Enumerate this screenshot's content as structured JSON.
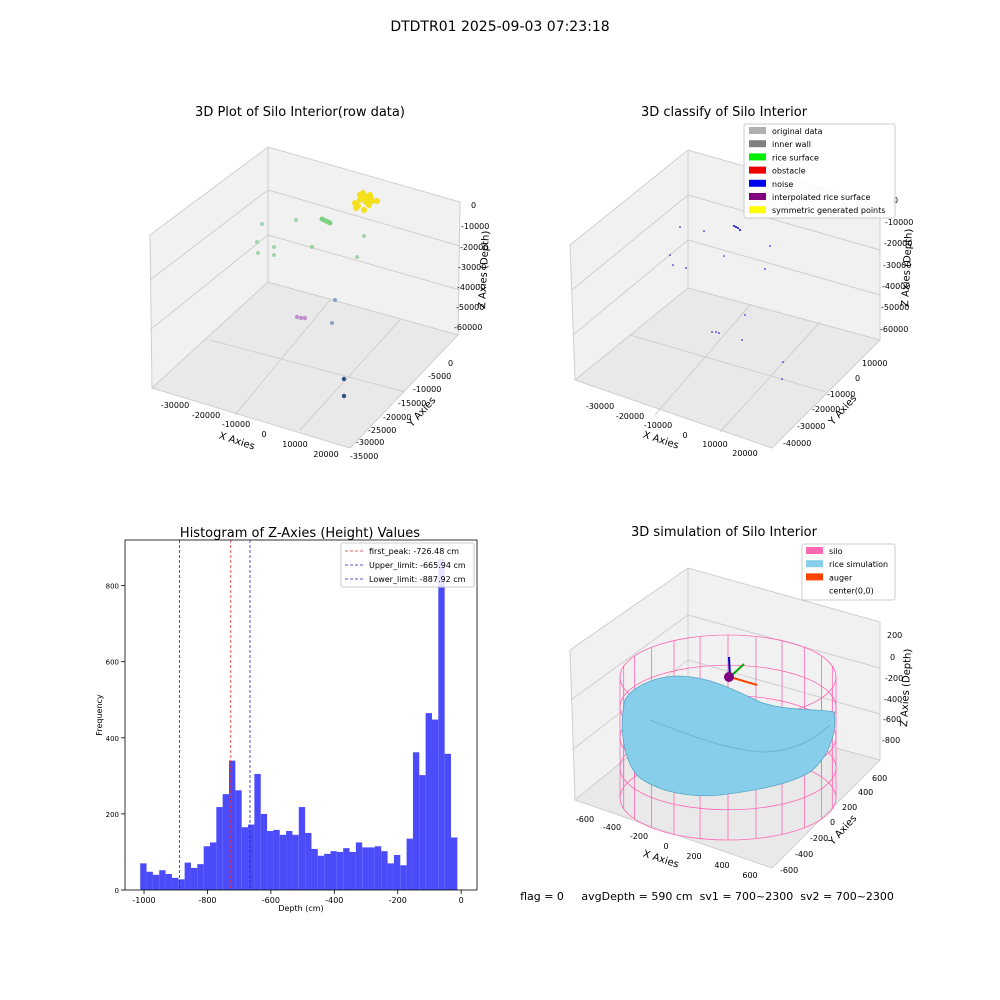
{
  "figure_title": "DTDTR01 2025-09-03 07:23:18",
  "footer_text": "flag = 0     avgDepth = 590 cm  sv1 = 700~2300  sv2 = 700~2300",
  "chart_data": [
    {
      "type": "scatter3d",
      "title": "3D Plot of Silo Interior(row data)",
      "xlabel": "X Axies",
      "ylabel": "Y Axies",
      "zlabel": "Z Axies (Depth)",
      "x_ticks": [
        "-30000",
        "-20000",
        "-10000",
        "0",
        "10000",
        "20000"
      ],
      "y_ticks": [
        "0",
        "-5000",
        "-10000",
        "-15000",
        "-20000",
        "-25000",
        "-30000",
        "-35000"
      ],
      "z_ticks": [
        "0",
        "-10000",
        "-20000",
        "-30000",
        "-40000",
        "-50000",
        "-60000"
      ],
      "point_groups": [
        {
          "color": "#f5e11a",
          "count": 17
        },
        {
          "color": "#7fd07f",
          "count": 6
        },
        {
          "color": "#9fd5b0",
          "count": 9
        },
        {
          "color": "#8c9ec8",
          "count": 2
        },
        {
          "color": "#c290d0",
          "count": 3
        },
        {
          "color": "#2c4f8a",
          "count": 2
        }
      ]
    },
    {
      "type": "scatter3d",
      "title": "3D classify of Silo Interior",
      "xlabel": "X Axies",
      "ylabel": "Y Axies",
      "zlabel": "Z Axies (Depth)",
      "x_ticks": [
        "-30000",
        "-20000",
        "-10000",
        "0",
        "10000",
        "20000"
      ],
      "y_ticks": [
        "10000",
        "0",
        "-10000",
        "-20000",
        "-30000",
        "-40000"
      ],
      "z_ticks": [
        "0",
        "-10000",
        "-20000",
        "-30000",
        "-40000",
        "-50000",
        "-60000"
      ],
      "legend": [
        {
          "label": "original data",
          "color": "#b0b0b0"
        },
        {
          "label": "inner wall",
          "color": "#808080"
        },
        {
          "label": "rice surface",
          "color": "#00ee00"
        },
        {
          "label": "obstacle",
          "color": "#ee0000"
        },
        {
          "label": "noise",
          "color": "#0000ee"
        },
        {
          "label": "interpolated rice surface",
          "color": "#800080"
        },
        {
          "label": "symmetric generated points",
          "color": "#ffff00"
        }
      ],
      "legend_loc": "upper right"
    },
    {
      "type": "bar",
      "title": "Histogram of Z-Axies (Height) Values",
      "xlabel": "Depth (cm)",
      "ylabel": "Frequency",
      "xlim": [
        -1060,
        50
      ],
      "ylim": [
        0,
        920
      ],
      "x_ticks": [
        -1000,
        -800,
        -600,
        -400,
        -200,
        0
      ],
      "y_ticks": [
        0,
        200,
        400,
        600,
        800
      ],
      "bin_start": -1012,
      "bin_width": 20,
      "values": [
        70,
        48,
        40,
        52,
        42,
        32,
        28,
        72,
        58,
        68,
        115,
        125,
        218,
        252,
        340,
        262,
        165,
        172,
        305,
        200,
        155,
        158,
        145,
        155,
        145,
        218,
        150,
        108,
        90,
        95,
        102,
        100,
        110,
        100,
        125,
        112,
        112,
        115,
        102,
        70,
        92,
        65,
        135,
        362,
        302,
        465,
        448,
        870,
        358,
        138
      ],
      "bar_color": "#4b4bfa",
      "lines": [
        {
          "label": "first_peak: -726.48 cm",
          "value": -726.48,
          "color": "#e03030"
        },
        {
          "label": "Upper_limit: -665.94 cm",
          "value": -665.94,
          "color": "#2020cc"
        },
        {
          "label": "Lower_limit: -887.92 cm",
          "value": -887.92,
          "color": "#2020cc"
        }
      ],
      "legend_loc": "upper right"
    },
    {
      "type": "surface3d",
      "title": "3D simulation of Silo Interior",
      "xlabel": "X Axies",
      "ylabel": "Y Axies",
      "zlabel": "Z Axies (Depth)",
      "x_ticks": [
        "-600",
        "-400",
        "-200",
        "0",
        "200",
        "400",
        "600"
      ],
      "y_ticks": [
        "600",
        "400",
        "200",
        "0",
        "-200",
        "-400",
        "-600"
      ],
      "z_ticks": [
        "200",
        "0",
        "-200",
        "-400",
        "-600",
        "-800"
      ],
      "legend": [
        {
          "label": "silo",
          "color": "#ff69b4"
        },
        {
          "label": "rice simulation",
          "color": "#87ceeb"
        },
        {
          "label": "auger",
          "color": "#ff4500"
        },
        {
          "label": "center(0,0)",
          "color": ""
        }
      ],
      "legend_loc": "upper right"
    }
  ]
}
